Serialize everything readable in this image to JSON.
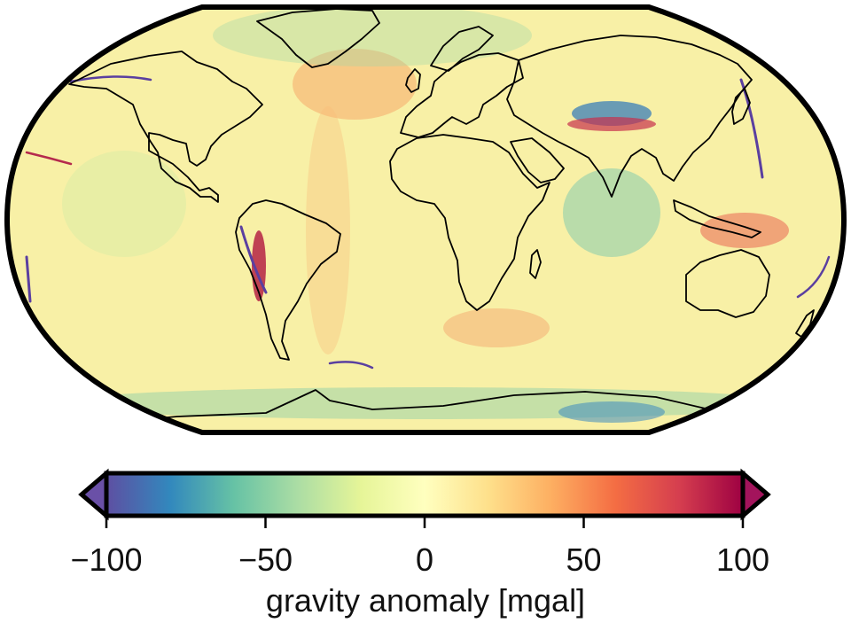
{
  "map": {
    "projection": "Robinson",
    "base_color": "#f8f0a6",
    "frame_color": "#000000",
    "coastline_color": "#000000"
  },
  "colorbar": {
    "label": "gravity anomaly [mgal]",
    "ticks": [
      {
        "value": -100,
        "label": "−100"
      },
      {
        "value": -50,
        "label": "−50"
      },
      {
        "value": 0,
        "label": "0"
      },
      {
        "value": 50,
        "label": "50"
      },
      {
        "value": 100,
        "label": "100"
      }
    ],
    "range": [
      -100,
      100
    ],
    "extend": "both",
    "colormap": "Spectral (reversed)",
    "colors": [
      "#5e4fa2",
      "#3288bd",
      "#66c2a5",
      "#abdda4",
      "#e6f598",
      "#ffffbf",
      "#fee08b",
      "#fdae61",
      "#f46d43",
      "#d53e4f",
      "#9e0142"
    ],
    "under_color": "#6a50a7",
    "over_color": "#a3145c"
  }
}
